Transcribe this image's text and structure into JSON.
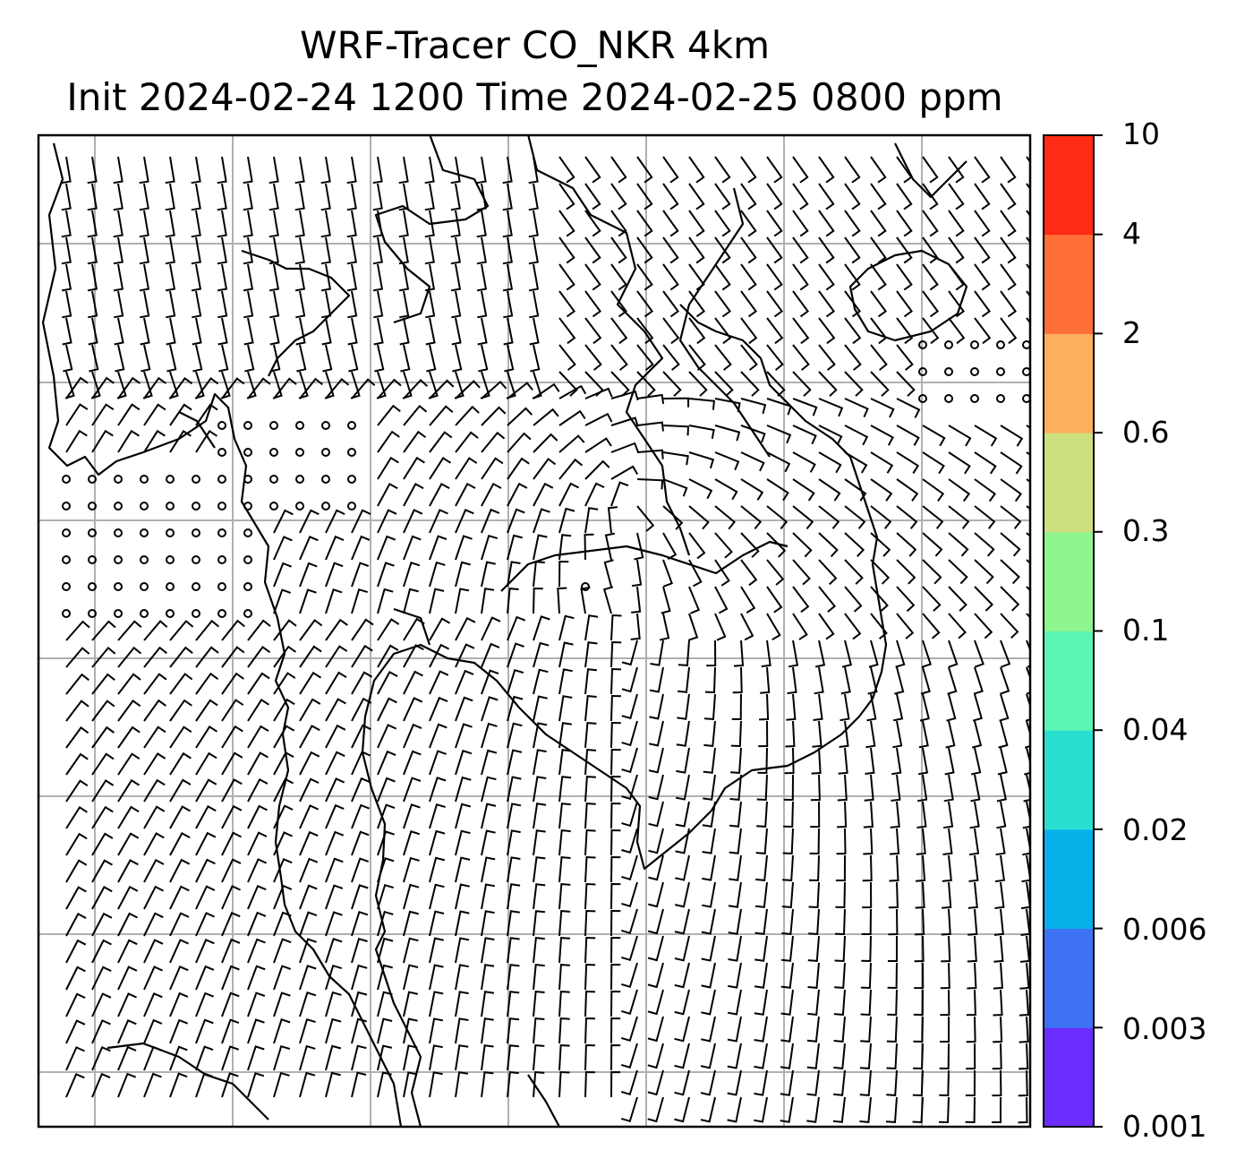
{
  "title": {
    "line1": "WRF-Tracer CO_NKR 4km",
    "line2": "Init 2024-02-24 1200 Time 2024-02-25 0800 ppm"
  },
  "colorbar": {
    "ticks": [
      "0.001",
      "0.003",
      "0.006",
      "0.02",
      "0.04",
      "0.1",
      "0.3",
      "0.6",
      "2",
      "4",
      "10"
    ],
    "colors": [
      "#6a2cff",
      "#3d72f3",
      "#08b0ea",
      "#2adfcf",
      "#5cf5b5",
      "#8ef58f",
      "#cde07f",
      "#fcb05d",
      "#ff7038",
      "#ff2b14"
    ]
  },
  "map": {
    "grid": "on",
    "grid_color": "#b0b0b0",
    "barb_color": "#000000",
    "coastline_color": "#000000"
  }
}
